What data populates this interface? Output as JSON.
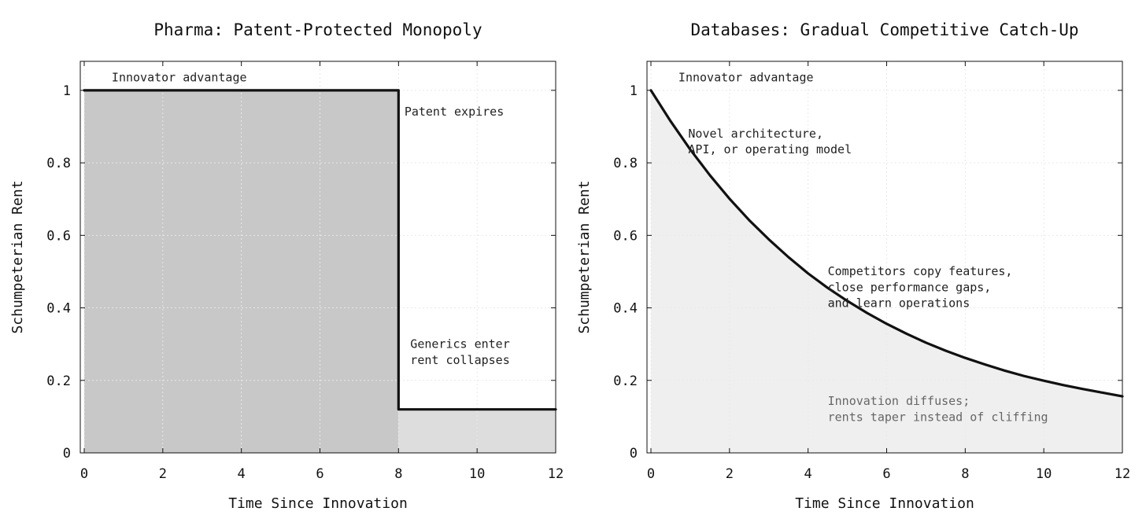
{
  "chart_data": [
    {
      "type": "area",
      "title": "Pharma: Patent-Protected Monopoly",
      "xlabel": "Time Since Innovation",
      "ylabel": "Schumpeterian Rent",
      "xlim": [
        -0.1,
        12
      ],
      "ylim": [
        0,
        1.08
      ],
      "xticks": [
        "0",
        "2",
        "4",
        "6",
        "8",
        "10",
        "12"
      ],
      "yticks": [
        "0",
        "0.2",
        "0.4",
        "0.6",
        "0.8",
        "1"
      ],
      "grid": true,
      "series": [
        {
          "x": [
            0,
            8,
            8,
            12
          ],
          "y": [
            1,
            1,
            0.12,
            0.12
          ],
          "color": "#111111"
        }
      ],
      "fill_regions": [
        {
          "x_from": 0,
          "x_to": 8,
          "y": 1,
          "color": "#c8c8c8"
        },
        {
          "x_from": 8,
          "x_to": 12,
          "y": 0.12,
          "color": "#dddddd"
        }
      ],
      "annotations": [
        {
          "text": "Innovator advantage",
          "x": 0.7,
          "y": 1.025,
          "style": "dark"
        },
        {
          "text": "Patent expires",
          "x": 8.15,
          "y": 0.93,
          "style": "dark"
        },
        {
          "text": "Generics enter",
          "x": 8.3,
          "y": 0.29,
          "style": "dark"
        },
        {
          "text": "rent collapses",
          "x": 8.3,
          "y": 0.245,
          "style": "dark"
        }
      ]
    },
    {
      "type": "area",
      "title": "Databases: Gradual Competitive Catch-Up",
      "xlabel": "Time Since Innovation",
      "ylabel": "Schumpeterian Rent",
      "xlim": [
        -0.1,
        12
      ],
      "ylim": [
        0,
        1.08
      ],
      "xticks": [
        "0",
        "2",
        "4",
        "6",
        "8",
        "10",
        "12"
      ],
      "yticks": [
        "0",
        "0.2",
        "0.4",
        "0.6",
        "0.8",
        "1"
      ],
      "grid": true,
      "series": [
        {
          "x": [
            0,
            0.5,
            1,
            1.5,
            2,
            2.5,
            3,
            3.5,
            4,
            4.5,
            5,
            5.5,
            6,
            6.5,
            7,
            7.5,
            8,
            8.5,
            9,
            9.5,
            10,
            10.5,
            11,
            11.5,
            12
          ],
          "y": [
            1,
            0.915,
            0.837,
            0.766,
            0.701,
            0.642,
            0.589,
            0.54,
            0.495,
            0.455,
            0.419,
            0.386,
            0.356,
            0.329,
            0.304,
            0.282,
            0.262,
            0.244,
            0.227,
            0.212,
            0.199,
            0.187,
            0.176,
            0.166,
            0.156
          ],
          "color": "#111111"
        }
      ],
      "fill_color": "#efefef",
      "annotations": [
        {
          "text": "Innovator advantage",
          "x": 0.7,
          "y": 1.025,
          "style": "dark"
        },
        {
          "text": "Novel architecture,",
          "x": 0.95,
          "y": 0.87,
          "style": "dark"
        },
        {
          "text": "API, or operating model",
          "x": 0.95,
          "y": 0.826,
          "style": "dark"
        },
        {
          "text": "Competitors copy features,",
          "x": 4.5,
          "y": 0.49,
          "style": "dark"
        },
        {
          "text": "close performance gaps,",
          "x": 4.5,
          "y": 0.446,
          "style": "dark"
        },
        {
          "text": "and learn operations",
          "x": 4.5,
          "y": 0.402,
          "style": "dark"
        },
        {
          "text": "Innovation diffuses;",
          "x": 4.5,
          "y": 0.132,
          "style": "gray"
        },
        {
          "text": "rents taper instead of cliffing",
          "x": 4.5,
          "y": 0.088,
          "style": "gray"
        }
      ]
    }
  ]
}
